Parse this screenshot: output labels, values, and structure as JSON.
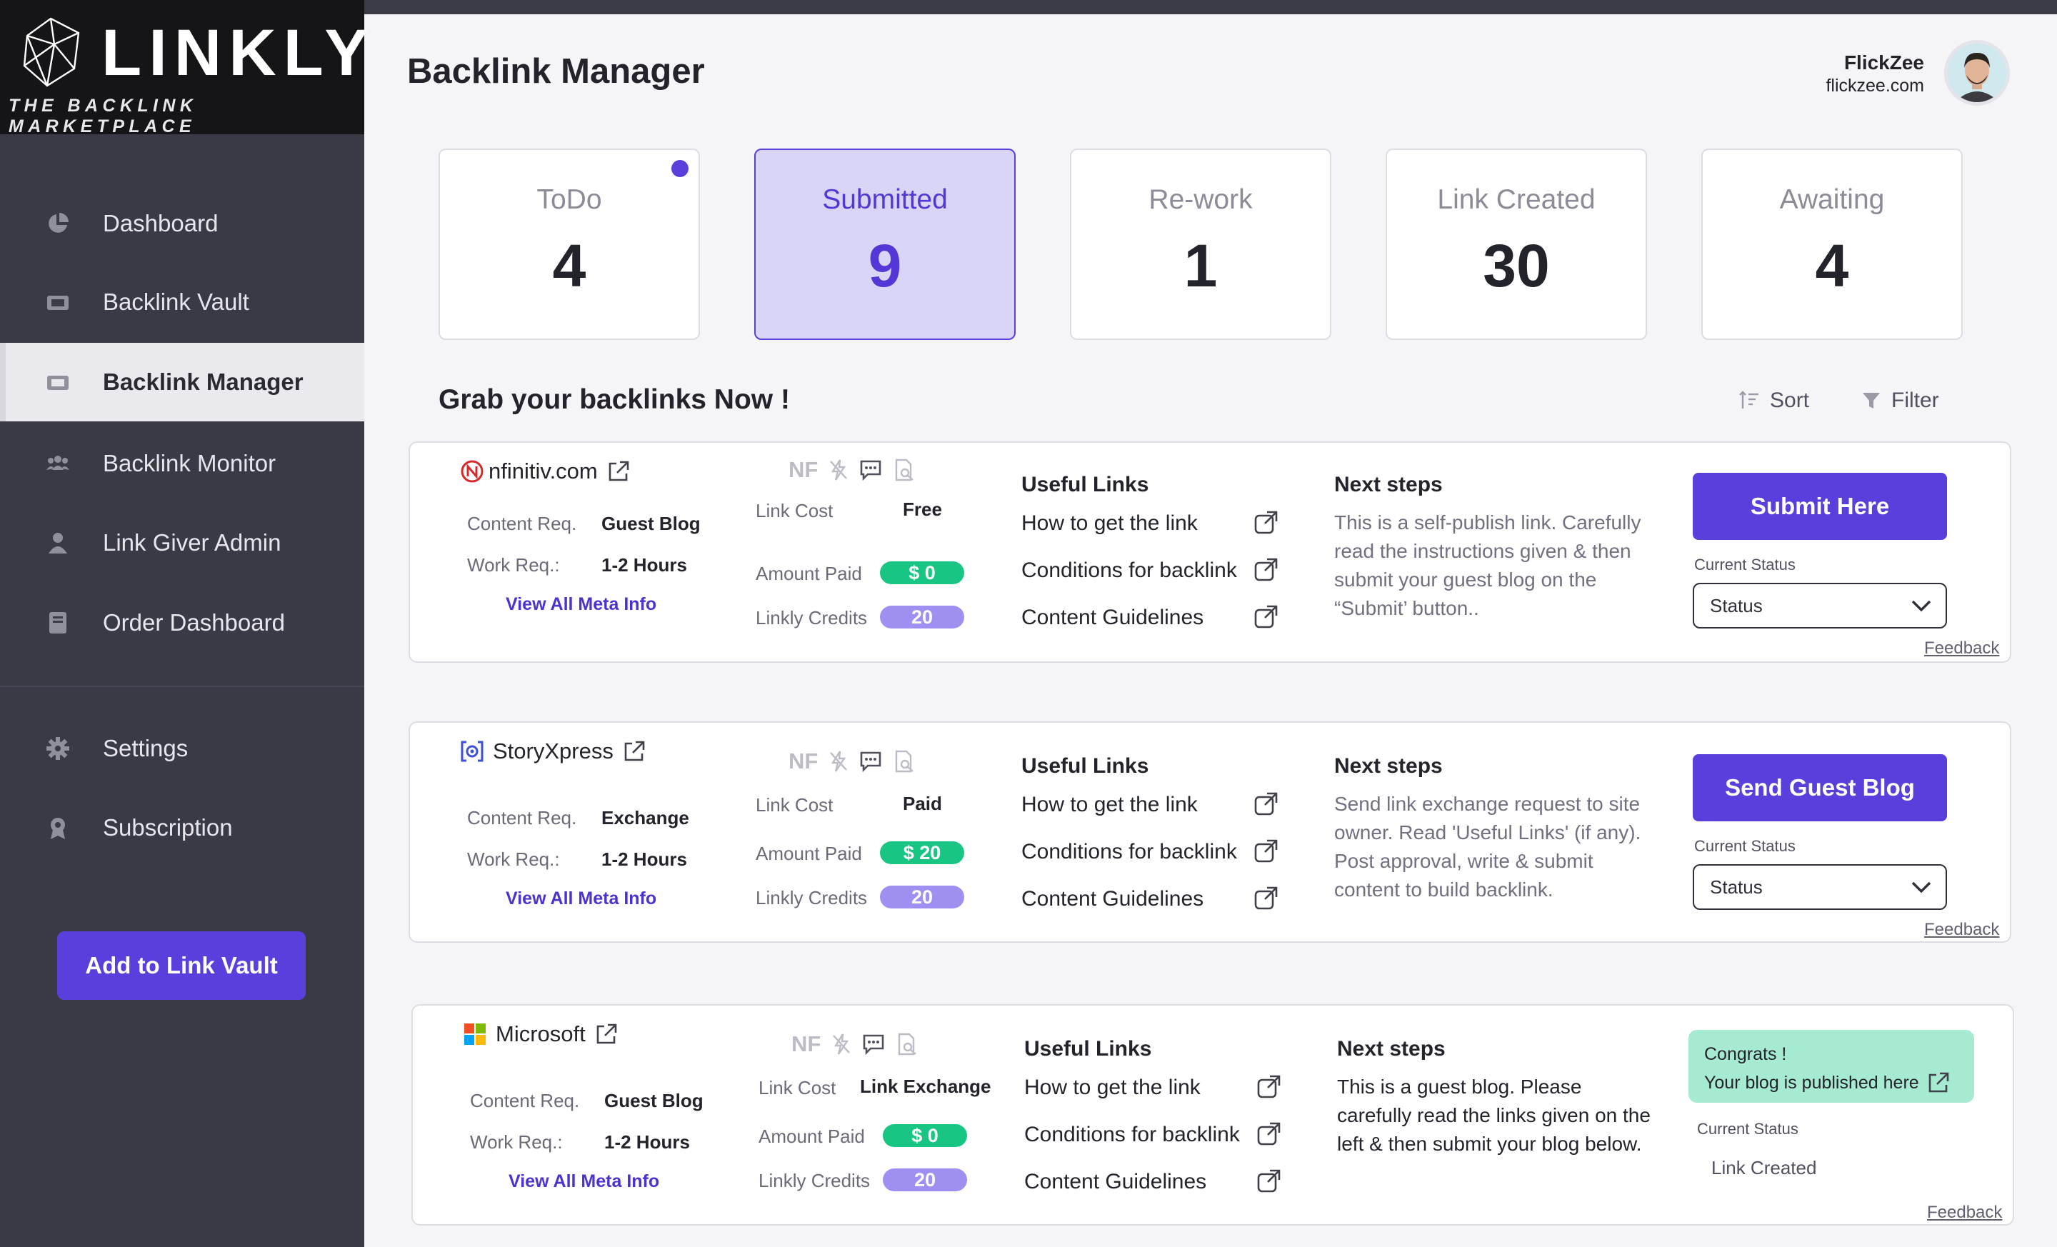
{
  "app": {
    "logo_title": "LINKLY",
    "logo_tagline": "THE BACKLINK MARKETPLACE"
  },
  "sidebar": {
    "items": [
      {
        "label": "Dashboard",
        "icon": "pie-chart-icon"
      },
      {
        "label": "Backlink Vault",
        "icon": "ticket-icon"
      },
      {
        "label": "Backlink Manager",
        "icon": "ticket-icon",
        "active": true
      },
      {
        "label": "Backlink Monitor",
        "icon": "users-icon"
      },
      {
        "label": "Link Giver Admin",
        "icon": "user-icon"
      },
      {
        "label": "Order Dashboard",
        "icon": "book-icon"
      },
      {
        "label": "Settings",
        "icon": "gear-icon"
      },
      {
        "label": "Subscription",
        "icon": "badge-icon"
      }
    ],
    "add_button": "Add to Link Vault"
  },
  "header": {
    "title": "Backlink Manager",
    "user_name": "FlickZee",
    "user_site": "flickzee.com"
  },
  "stats": [
    {
      "label": "ToDo",
      "value": "4",
      "has_dot": true
    },
    {
      "label": "Submitted",
      "value": "9",
      "selected": true
    },
    {
      "label": "Re-work",
      "value": "1"
    },
    {
      "label": "Link Created",
      "value": "30"
    },
    {
      "label": "Awaiting",
      "value": "4"
    }
  ],
  "section": {
    "title": "Grab your backlinks Now !",
    "sort_label": "Sort",
    "filter_label": "Filter"
  },
  "labels": {
    "content_req": "Content Req.",
    "work_req": "Work Req.:",
    "view_meta": "View All Meta Info",
    "nf": "NF",
    "link_cost": "Link Cost",
    "amount_paid": "Amount Paid",
    "linkly_credits": "Linkly Credits",
    "useful_links": "Useful Links",
    "next_steps": "Next steps",
    "current_status": "Current Status",
    "feedback": "Feedback",
    "useful_link_items": [
      "How to get the link",
      "Conditions for backlink",
      "Content Guidelines"
    ]
  },
  "listings": [
    {
      "site": "nfinitiv.com",
      "content_req": "Guest Blog",
      "work_req": "1-2 Hours",
      "link_cost": "Free",
      "amount_paid": "$ 0",
      "credits": "20",
      "next_steps": "This is a self-publish link. Carefully read the instructions given & then submit your guest blog on the “Submit’ button..",
      "action": "Submit Here",
      "status": "Status"
    },
    {
      "site": "StoryXpress",
      "content_req": "Exchange",
      "work_req": "1-2 Hours",
      "link_cost": "Paid",
      "amount_paid": "$ 20",
      "credits": "20",
      "next_steps": "Send link exchange request to site owner. Read 'Useful Links' (if any). Post approval, write & submit content to build backlink.",
      "action": "Send Guest Blog",
      "status": "Status"
    },
    {
      "site": "Microsoft",
      "content_req": "Guest Blog",
      "work_req": "1-2 Hours",
      "link_cost": "Link Exchange",
      "amount_paid": "$ 0",
      "credits": "20",
      "next_steps": "This is a guest blog. Please carefully read the links given on the left & then submit your blog below.",
      "congrats_line1": "Congrats !",
      "congrats_line2": "Your blog is published here",
      "status": "Link Created"
    }
  ],
  "colors": {
    "accent": "#5b3fdc",
    "sidebar_bg": "#393a45",
    "green_pill": "#19c583",
    "purple_pill": "#9e8ff0",
    "congrats_bg": "#a7ead2"
  }
}
